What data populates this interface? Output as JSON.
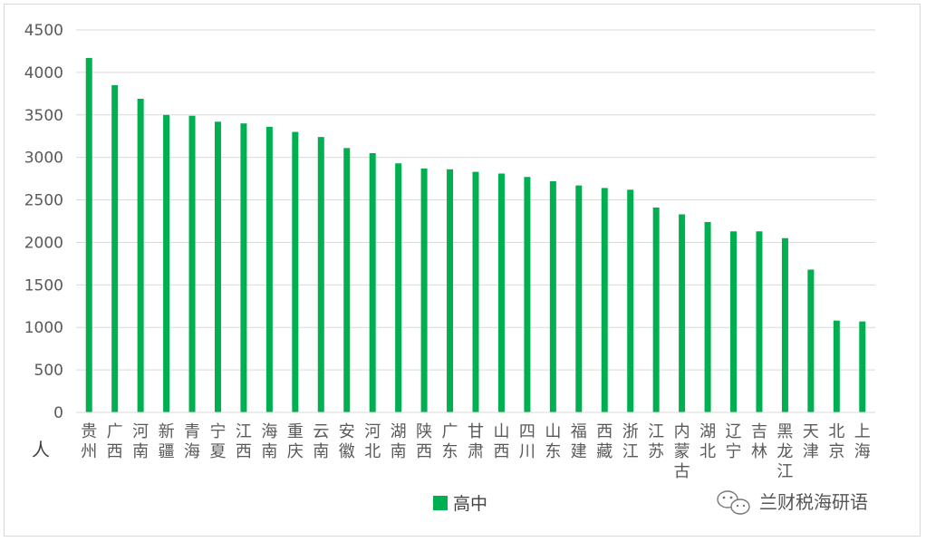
{
  "chart_data": {
    "type": "bar",
    "ylim": [
      0,
      4500
    ],
    "yticks": [
      0,
      500,
      1000,
      1500,
      2000,
      2500,
      3000,
      3500,
      4000,
      4500
    ],
    "ylabel": "人",
    "grid": true,
    "legend_position": "bottom",
    "categories": [
      "贵州",
      "广西",
      "河南",
      "新疆",
      "青海",
      "宁夏",
      "江西",
      "海南",
      "重庆",
      "云南",
      "安徽",
      "河北",
      "湖南",
      "陕西",
      "广东",
      "甘肃",
      "山西",
      "四川",
      "山东",
      "福建",
      "西藏",
      "浙江",
      "江苏",
      "内蒙古",
      "湖北",
      "辽宁",
      "吉林",
      "黑龙江",
      "天津",
      "北京",
      "上海"
    ],
    "series": [
      {
        "name": "高中",
        "color": "#00b050",
        "values": [
          4170,
          3850,
          3690,
          3500,
          3490,
          3420,
          3400,
          3360,
          3300,
          3240,
          3110,
          3050,
          2930,
          2870,
          2860,
          2830,
          2810,
          2770,
          2720,
          2670,
          2640,
          2620,
          2410,
          2330,
          2240,
          2130,
          2130,
          2050,
          1680,
          1080,
          1070
        ]
      }
    ]
  },
  "watermark": {
    "text": "兰财税海研语",
    "icon": "wechat-icon"
  }
}
